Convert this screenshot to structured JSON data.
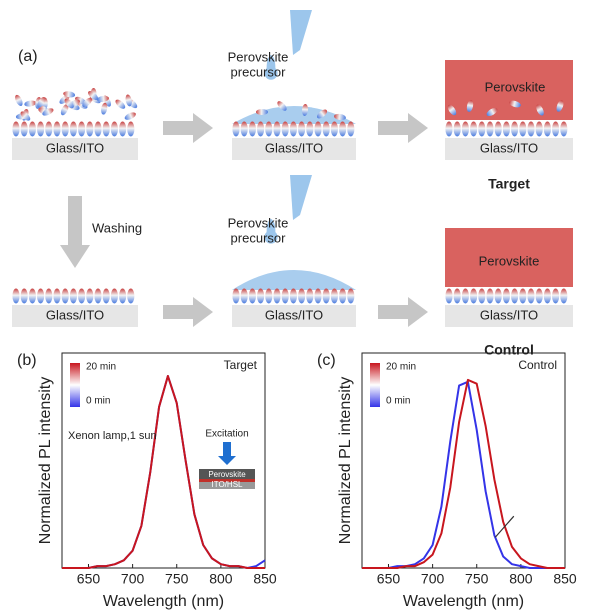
{
  "diagram": {
    "panel_label": "(a)",
    "substrate": [
      "Glass/ITO",
      "Glass/ITO",
      "Glass/ITO",
      "Glass/ITO",
      "Glass/ITO",
      "Glass/ITO"
    ],
    "precursor": [
      [
        "Perovskite",
        "precursor"
      ],
      [
        "Perovskite",
        "precursor"
      ]
    ],
    "film": [
      "Perovskite",
      "Perovskite"
    ],
    "row_labels": [
      "Target",
      "Control"
    ],
    "step": "Washing"
  },
  "chart_data": [
    {
      "type": "line",
      "panel_label": "(b)",
      "x_label": "Wavelength (nm)",
      "y_label": "Normalized PL intensity",
      "x": [
        620,
        630,
        640,
        650,
        660,
        670,
        680,
        690,
        700,
        710,
        720,
        730,
        740,
        750,
        760,
        770,
        780,
        790,
        800,
        810,
        820,
        830,
        840,
        850
      ],
      "series": [
        {
          "name": "0 min",
          "color": "#3434e8",
          "values": [
            0,
            0,
            0,
            0,
            0.01,
            0.01,
            0.02,
            0.04,
            0.09,
            0.22,
            0.5,
            0.84,
            1.0,
            0.86,
            0.56,
            0.28,
            0.12,
            0.05,
            0.02,
            0.01,
            0.01,
            0,
            0.01,
            0.04
          ]
        },
        {
          "name": "20 min",
          "color": "#c8161e",
          "values": [
            0,
            0,
            0,
            0,
            0.01,
            0.01,
            0.02,
            0.04,
            0.09,
            0.22,
            0.5,
            0.84,
            1.0,
            0.86,
            0.56,
            0.28,
            0.12,
            0.05,
            0.02,
            0.01,
            0.01,
            0,
            0,
            0
          ]
        }
      ],
      "xlim": [
        620,
        850
      ],
      "xticks": [
        650,
        700,
        750,
        800,
        850
      ],
      "ylim": [
        0,
        1.12
      ],
      "annotations": [
        "Target",
        "Xenon lamp,1 sun",
        "Excitation",
        "Perovskite",
        "ITO/HSL"
      ]
    },
    {
      "type": "line",
      "panel_label": "(c)",
      "x_label": "Wavelength (nm)",
      "y_label": "Normalized PL intensity",
      "x": [
        620,
        630,
        640,
        650,
        660,
        670,
        680,
        690,
        700,
        710,
        720,
        730,
        740,
        750,
        760,
        770,
        780,
        790,
        800,
        810,
        820,
        830,
        840,
        850
      ],
      "series": [
        {
          "name": "0 min",
          "color": "#3434e8",
          "values": [
            0,
            0,
            0,
            0,
            0.01,
            0.01,
            0.02,
            0.05,
            0.12,
            0.32,
            0.66,
            0.95,
            0.97,
            0.72,
            0.4,
            0.17,
            0.06,
            0.02,
            0.01,
            0,
            0,
            0,
            0,
            0
          ]
        },
        {
          "name": "20 min",
          "color": "#c8161e",
          "values": [
            0,
            0,
            0,
            0,
            0,
            0.01,
            0.01,
            0.03,
            0.07,
            0.18,
            0.42,
            0.76,
            0.98,
            0.96,
            0.74,
            0.46,
            0.24,
            0.11,
            0.05,
            0.02,
            0.01,
            0,
            0,
            0
          ]
        }
      ],
      "xlim": [
        620,
        850
      ],
      "xticks": [
        650,
        700,
        750,
        800,
        850
      ],
      "ylim": [
        0,
        1.12
      ],
      "annotations": [
        "Control"
      ]
    }
  ]
}
